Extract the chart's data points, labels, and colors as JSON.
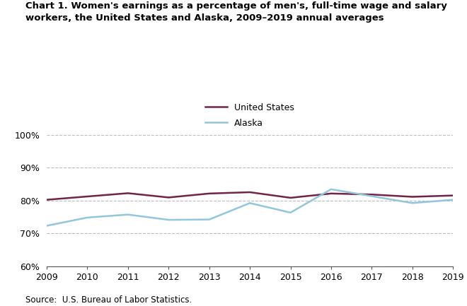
{
  "years": [
    2009,
    2010,
    2011,
    2012,
    2013,
    2014,
    2015,
    2016,
    2017,
    2018,
    2019
  ],
  "us_values": [
    80.2,
    81.2,
    82.2,
    80.9,
    82.1,
    82.5,
    80.8,
    82.1,
    81.8,
    81.1,
    81.5
  ],
  "alaska_values": [
    72.3,
    74.8,
    75.7,
    74.1,
    74.2,
    79.2,
    76.3,
    83.4,
    81.3,
    79.2,
    80.2
  ],
  "us_color": "#722446",
  "alaska_color": "#92c5de",
  "title_line1": "Chart 1. Women's earnings as a percentage of men's, full-time wage and salary",
  "title_line2": "workers, the United States and Alaska, 2009–2019 annual averages",
  "legend_us": "United States",
  "legend_alaska": "Alaska",
  "source_text": "Source:  U.S. Bureau of Labor Statistics.",
  "ylim_min": 60,
  "ylim_max": 100,
  "yticks": [
    60,
    70,
    80,
    90,
    100
  ],
  "line_width": 1.8,
  "grid_color": "#bbbbbb",
  "grid_linestyle": "--",
  "grid_linewidth": 0.8
}
